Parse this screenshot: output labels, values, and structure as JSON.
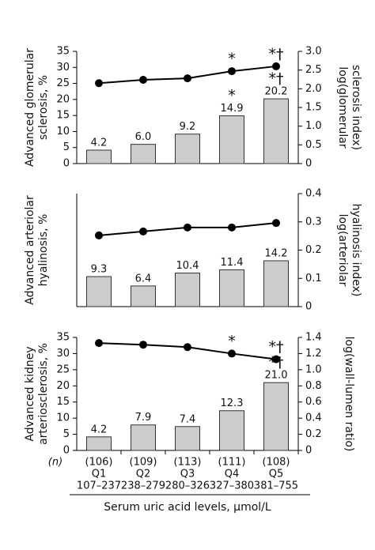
{
  "chart_data": [
    {
      "type": "bar_line",
      "ylabel": [
        "Advanced glomerular",
        "sclerosis, %"
      ],
      "y2label": [
        "log(glomerular",
        "sclerosis index)"
      ],
      "ylim": [
        0,
        35
      ],
      "yticks": [
        0,
        5,
        10,
        15,
        20,
        25,
        30,
        35
      ],
      "y2lim": [
        0,
        3
      ],
      "y2ticks": [
        0,
        0.5,
        {
          "value": 1,
          "label": "1.0"
        },
        1.5,
        {
          "value": 2,
          "label": "2.0"
        },
        2.5,
        {
          "value": 3,
          "label": "3.0"
        }
      ],
      "series": [
        {
          "color": "#cccccc",
          "values": [
            4.2,
            6.0,
            9.2,
            14.9,
            20.2
          ],
          "value_labels": [
            "4.2",
            "6.0",
            "9.2",
            "14.9",
            "20.2"
          ],
          "annotations": [
            null,
            null,
            null,
            "*",
            "*†"
          ]
        },
        {
          "axis": "y2",
          "color": "#000000",
          "values": [
            2.15,
            2.24,
            2.28,
            2.47,
            2.6
          ],
          "annotations": [
            null,
            null,
            null,
            "*",
            "*†"
          ]
        }
      ]
    },
    {
      "type": "bar_line",
      "ylabel": [
        "Advanced arteriolar",
        "hyalinosis, %"
      ],
      "y2label": [
        "log(arteriolar",
        "hyalinosis index)"
      ],
      "ylim": [
        0,
        35
      ],
      "y2lim": [
        0,
        0.4
      ],
      "y2ticks": [
        0,
        0.1,
        0.2,
        0.3,
        0.4
      ],
      "series": [
        {
          "color": "#cccccc",
          "values": [
            9.3,
            6.4,
            10.4,
            11.4,
            14.2
          ]
        },
        {
          "axis": "y2",
          "color": "#000000",
          "values": [
            0.252,
            0.266,
            0.28,
            0.28,
            0.296
          ]
        }
      ]
    },
    {
      "type": "bar_line",
      "ylabel": [
        "Advanced kidney",
        "arteriosclerosis, %"
      ],
      "y2label": [
        "log(wall-lumen ratio)"
      ],
      "ylim": [
        0,
        35
      ],
      "yticks": [
        0,
        5,
        10,
        15,
        20,
        25,
        30,
        35
      ],
      "y2lim": [
        0,
        1.4
      ],
      "y2ticks": [
        0,
        0.2,
        0.4,
        0.6,
        0.8,
        {
          "value": 1,
          "label": "1.0"
        },
        1.2,
        1.4
      ],
      "series": [
        {
          "color": "#cccccc",
          "values": [
            4.2,
            7.9,
            7.4,
            12.3,
            21.0
          ],
          "value_labels": [
            "4.2",
            "7.9",
            "7.4",
            "12.3",
            "21.0"
          ],
          "annotations": [
            null,
            null,
            null,
            null,
            "*†"
          ]
        },
        {
          "axis": "y2",
          "color": "#000000",
          "values": [
            1.33,
            1.31,
            1.28,
            1.2,
            1.13
          ],
          "annotations": [
            null,
            null,
            null,
            "*",
            "*†"
          ]
        }
      ],
      "n_label": "(n)",
      "counts": [
        "(106)",
        "(109)",
        "(113)",
        "(111)",
        "(108)"
      ],
      "categories": [
        "Q1",
        "Q2",
        "Q3",
        "Q4",
        "Q5"
      ],
      "ranges": [
        "107–237",
        "238–279",
        "280–326",
        "327–380",
        "381–755"
      ],
      "xlabel": "Serum uric acid levels, µmol/L"
    }
  ]
}
